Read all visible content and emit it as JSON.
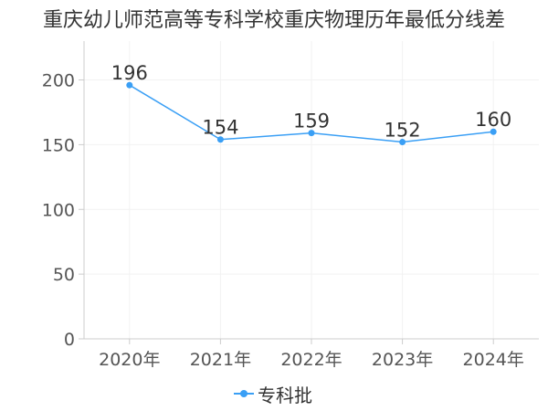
{
  "chart_data": {
    "type": "line",
    "title": "重庆幼儿师范高等专科学校重庆物理历年最低分线差",
    "categories": [
      "2020年",
      "2021年",
      "2022年",
      "2023年",
      "2024年"
    ],
    "y_ticks": [
      "0",
      "50",
      "100",
      "150",
      "200"
    ],
    "ylim": [
      0,
      230
    ],
    "grid": true,
    "legend_position": "bottom",
    "series": [
      {
        "name": "专科批",
        "values": [
          196,
          154,
          159,
          152,
          160
        ],
        "labels": [
          "196",
          "154",
          "159",
          "152",
          "160"
        ],
        "color": "#3a9ff5"
      }
    ]
  }
}
